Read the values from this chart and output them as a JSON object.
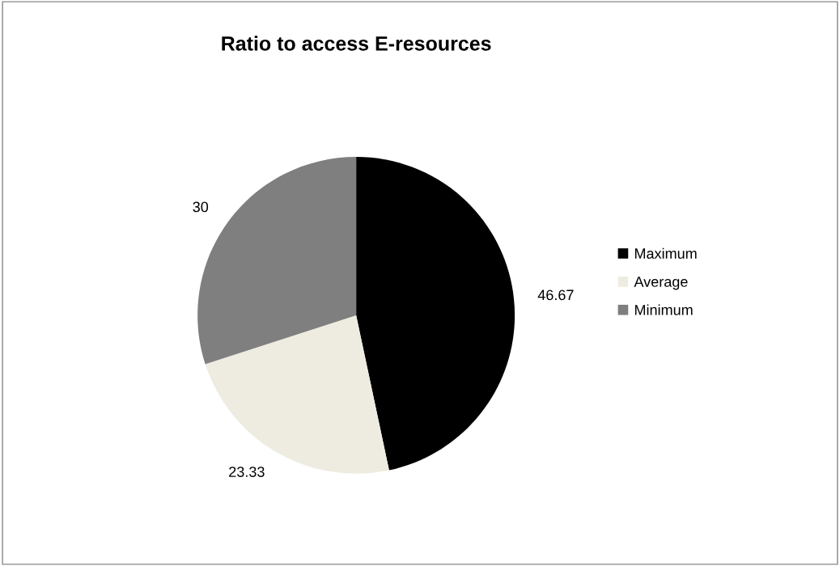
{
  "chart_data": {
    "type": "pie",
    "title": "Ratio to access E-resources",
    "categories": [
      "Maximum",
      "Average",
      "Minimum"
    ],
    "values": [
      46.67,
      23.33,
      30
    ],
    "colors": [
      "#000000",
      "#eeece1",
      "#7f7f7f"
    ],
    "data_labels": true,
    "legend": "right"
  }
}
